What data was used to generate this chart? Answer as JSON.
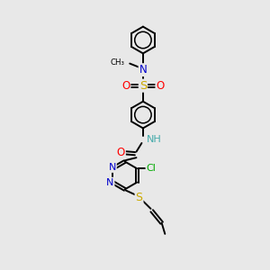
{
  "bg_color": "#e8e8e8",
  "atom_colors": {
    "N": "#0000cc",
    "O": "#ff0000",
    "S": "#ccaa00",
    "Cl": "#00aa00",
    "NH": "#44aaaa"
  },
  "bond_color": "#000000",
  "bond_width": 1.4,
  "figsize": [
    3.0,
    3.0
  ],
  "dpi": 100
}
